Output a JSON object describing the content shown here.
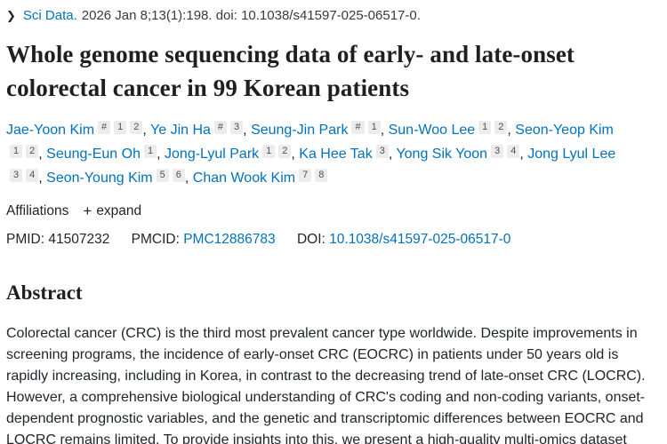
{
  "colors": {
    "link_blue": "#0071bc",
    "text_dark": "#212529",
    "badge_bg": "#ececec",
    "background": "#ffffff"
  },
  "journal_bar": {
    "chevron_glyph": "❯",
    "journal_link": "Sci Data.",
    "citation": "2026 Jan 8;13(1):198. doi: 10.1038/s41597-025-06517-0."
  },
  "title": "Whole genome sequencing data of early- and late-onset colorectal cancer in 99 Korean patients",
  "authors": [
    {
      "name": "Jae-Yoon Kim",
      "marks": [
        "#",
        "1",
        "2"
      ]
    },
    {
      "name": "Ye Jin Ha",
      "marks": [
        "#",
        "3"
      ]
    },
    {
      "name": "Seung-Jin Park",
      "marks": [
        "#",
        "1"
      ]
    },
    {
      "name": "Sun-Woo Lee",
      "marks": [
        "1",
        "2"
      ]
    },
    {
      "name": "Seon-Yeop Kim",
      "marks": [
        "1",
        "2"
      ]
    },
    {
      "name": "Seung-Eun Oh",
      "marks": [
        "1"
      ]
    },
    {
      "name": "Jong-Lyul Park",
      "marks": [
        "1",
        "2"
      ]
    },
    {
      "name": "Ka Hee Tak",
      "marks": [
        "3"
      ]
    },
    {
      "name": "Yong Sik Yoon",
      "marks": [
        "3",
        "4"
      ]
    },
    {
      "name": "Jong Lyul Lee",
      "marks": [
        "3",
        "4"
      ]
    },
    {
      "name": "Seon-Young Kim",
      "marks": [
        "5",
        "6"
      ]
    },
    {
      "name": "Chan Wook Kim",
      "marks": [
        "7",
        "8"
      ]
    }
  ],
  "affiliations": {
    "label": "Affiliations",
    "plus_glyph": "+",
    "expand_label": "expand"
  },
  "identifiers": {
    "pmid_label": "PMID:",
    "pmid_value": "41507232",
    "pmcid_label": "PMCID:",
    "pmcid_value": "PMC12886783",
    "doi_label": "DOI:",
    "doi_value": "10.1038/s41597-025-06517-0"
  },
  "abstract": {
    "heading": "Abstract",
    "text": "Colorectal cancer (CRC) is the third most prevalent cancer type worldwide. Despite improvements in screening programs, the incidence of early-onset CRC (EOCRC) in patients under 50 years old is rapidly increasing, including in Korea, in contrast to the decreasing trend of late-onset CRC (LOCRC). However, a comprehensive biological understanding of CRC's coding and non-coding variants, onset-dependent prognostic variables, and the genetic and transcriptomic differences between EOCRC and LOCRC remains limited. To provide insights into this, we present a high-quality multi-omics dataset"
  }
}
